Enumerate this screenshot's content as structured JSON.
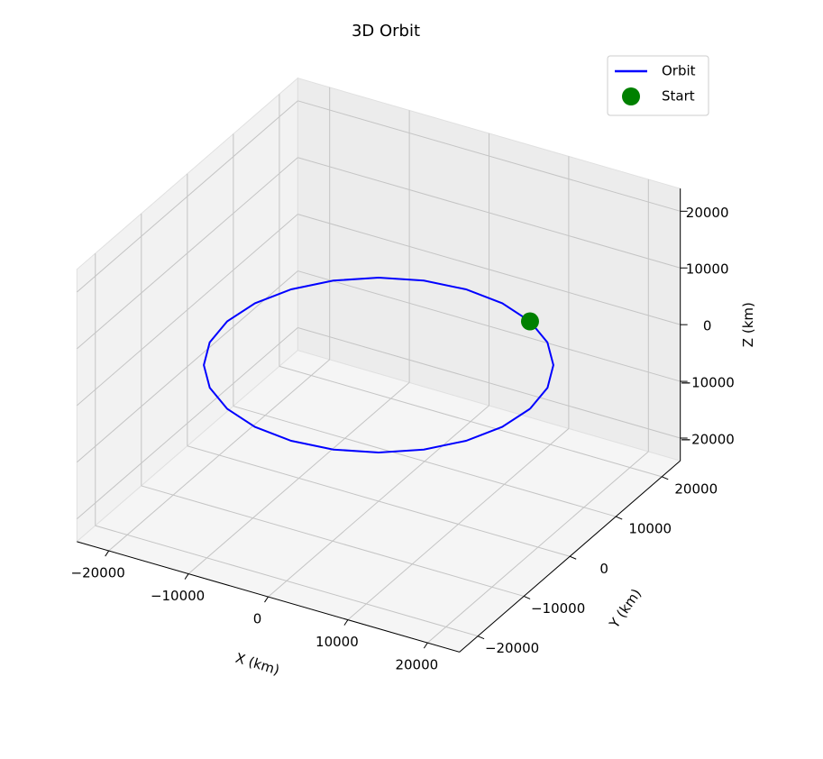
{
  "chart_data": {
    "type": "line3d",
    "title": "3D Orbit",
    "xlabel": "X (km)",
    "ylabel": "Y (km)",
    "zlabel": "Z (km)",
    "xlim": [
      -24000,
      24000
    ],
    "ylim": [
      -24000,
      24000
    ],
    "zlim": [
      -24000,
      24000
    ],
    "xticks": [
      {
        "value": -20000,
        "label": "−20000"
      },
      {
        "value": -10000,
        "label": "−10000"
      },
      0,
      10000,
      20000
    ],
    "yticks": [
      {
        "value": -20000,
        "label": "−20000"
      },
      {
        "value": -10000,
        "label": "−10000"
      },
      0,
      10000,
      20000
    ],
    "zticks": [
      {
        "value": -20000,
        "label": "−20000"
      },
      {
        "value": -10000,
        "label": "−10000"
      },
      0,
      10000,
      20000
    ],
    "grid": true,
    "legend": "upper right",
    "series": [
      {
        "name": "Orbit",
        "color": "#0000ff",
        "type": "line",
        "x": [
          19000,
          18353,
          16454,
          13435,
          9500,
          4918,
          0,
          -4918,
          -9500,
          -13435,
          -16454,
          -18353,
          -19000,
          -18353,
          -16454,
          -13435,
          -9500,
          -4918,
          0,
          4918,
          9500,
          13435,
          16454,
          18353,
          19000
        ],
        "y": [
          0,
          4918,
          9500,
          13435,
          16454,
          18353,
          19000,
          18353,
          16454,
          13435,
          9500,
          4918,
          0,
          -4918,
          -9500,
          -13435,
          -16454,
          -18353,
          -19000,
          -18353,
          -16454,
          -13435,
          -9500,
          -4918,
          0
        ],
        "z": [
          0,
          0,
          0,
          0,
          0,
          0,
          0,
          0,
          0,
          0,
          0,
          0,
          0,
          0,
          0,
          0,
          0,
          0,
          0,
          0,
          0,
          0,
          0,
          0,
          0
        ]
      },
      {
        "name": "Start",
        "color": "#008000",
        "type": "scatter",
        "x": [
          9500
        ],
        "y": [
          16454
        ],
        "z": [
          0
        ]
      }
    ]
  }
}
